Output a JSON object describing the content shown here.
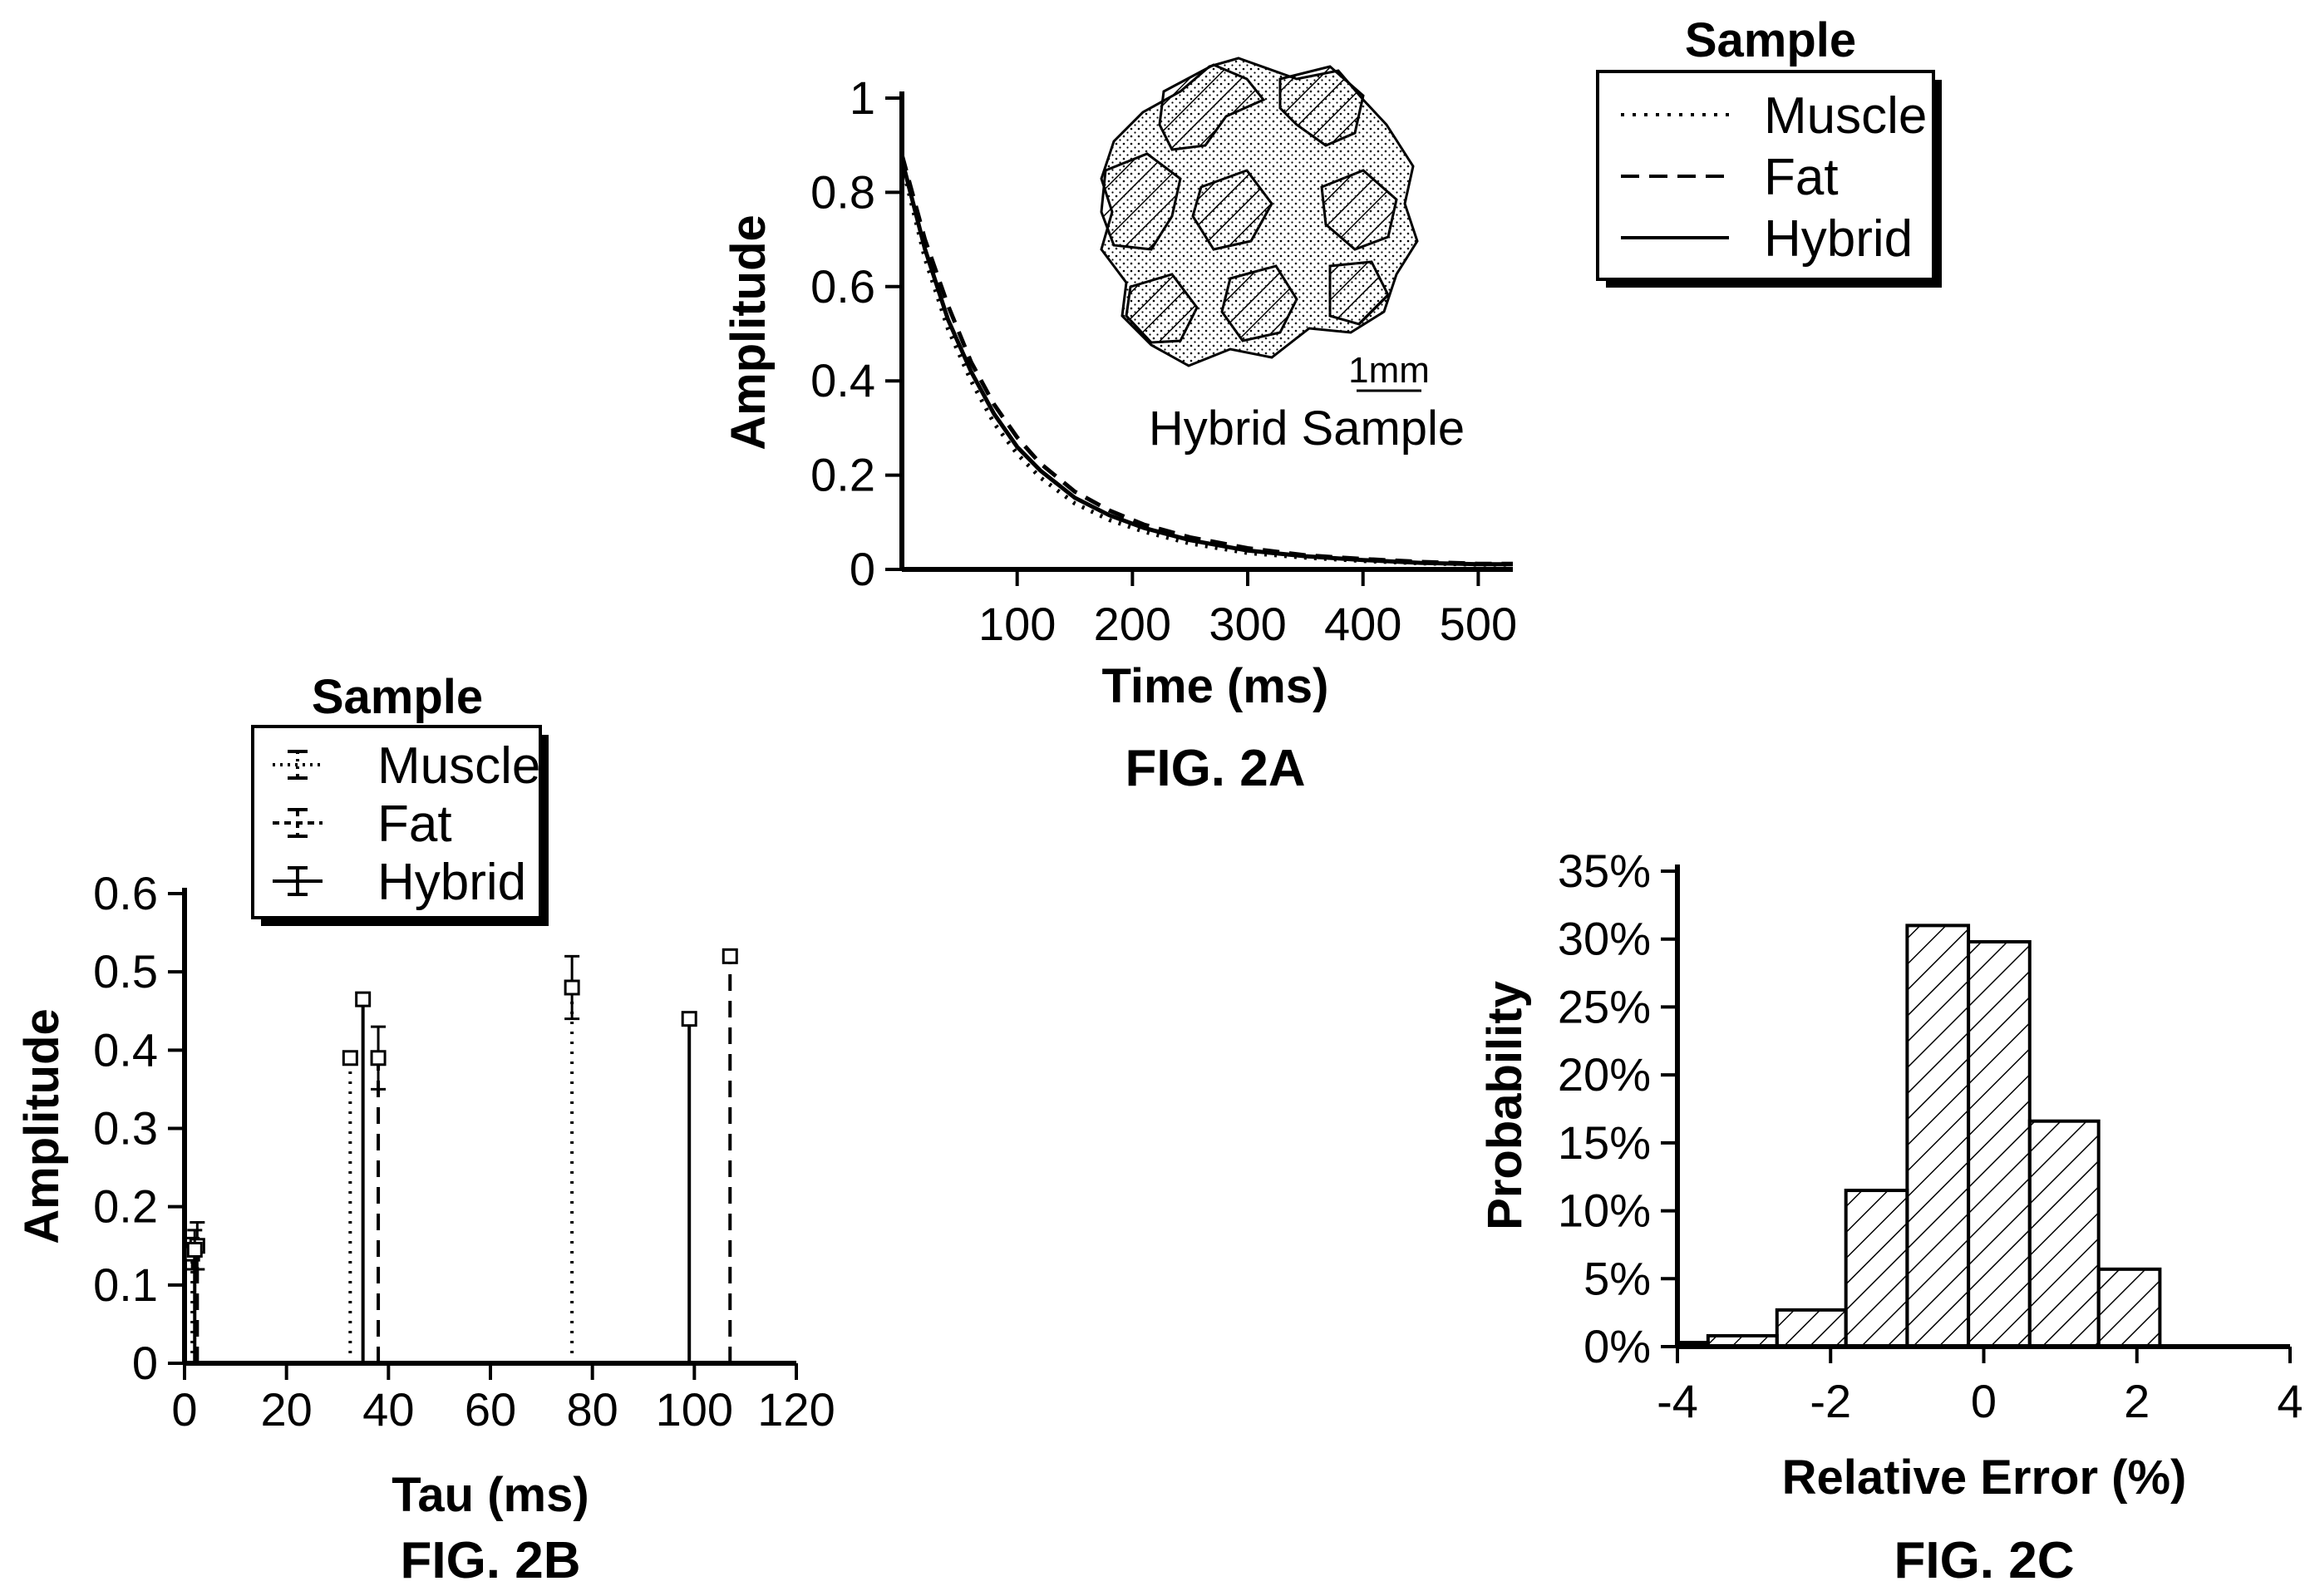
{
  "chart_data": [
    {
      "id": "fig2a",
      "type": "line",
      "figure_label": "FIG. 2A",
      "xlabel": "Time (ms)",
      "ylabel": "Amplitude",
      "xlim": [
        0,
        530
      ],
      "ylim": [
        0,
        1
      ],
      "x_ticks": [
        "100",
        "200",
        "300",
        "400",
        "500"
      ],
      "x_tick_values": [
        100,
        200,
        300,
        400,
        500
      ],
      "y_ticks": [
        "0",
        "0.2",
        "0.4",
        "0.6",
        "0.8",
        "1"
      ],
      "y_tick_values": [
        0,
        0.2,
        0.4,
        0.6,
        0.8,
        1
      ],
      "legend_title": "Sample",
      "legend_position": "top-right",
      "inset_caption": "Hybrid Sample",
      "inset_scale": "1mm",
      "series": [
        {
          "name": "Muscle",
          "style": "dotted",
          "x": [
            0,
            20,
            40,
            60,
            80,
            100,
            120,
            150,
            180,
            210,
            250,
            300,
            350,
            400,
            450,
            500,
            530
          ],
          "y": [
            0.86,
            0.66,
            0.51,
            0.4,
            0.31,
            0.245,
            0.195,
            0.14,
            0.105,
            0.08,
            0.055,
            0.035,
            0.025,
            0.018,
            0.013,
            0.01,
            0.01
          ]
        },
        {
          "name": "Fat",
          "style": "dashed",
          "x": [
            0,
            20,
            40,
            60,
            80,
            100,
            120,
            150,
            180,
            210,
            250,
            300,
            350,
            400,
            450,
            500,
            530
          ],
          "y": [
            0.88,
            0.7,
            0.56,
            0.44,
            0.35,
            0.28,
            0.225,
            0.165,
            0.125,
            0.095,
            0.068,
            0.045,
            0.03,
            0.022,
            0.016,
            0.012,
            0.012
          ]
        },
        {
          "name": "Hybrid",
          "style": "solid",
          "x": [
            0,
            20,
            40,
            60,
            80,
            100,
            120,
            150,
            180,
            210,
            250,
            300,
            350,
            400,
            450,
            500,
            530
          ],
          "y": [
            0.87,
            0.68,
            0.53,
            0.42,
            0.33,
            0.26,
            0.21,
            0.152,
            0.115,
            0.088,
            0.062,
            0.04,
            0.028,
            0.02,
            0.014,
            0.011,
            0.011
          ]
        }
      ]
    },
    {
      "id": "fig2b",
      "type": "scatter",
      "figure_label": "FIG. 2B",
      "xlabel": "Tau (ms)",
      "ylabel": "Amplitude",
      "xlim": [
        0,
        120
      ],
      "ylim": [
        0,
        0.6
      ],
      "x_ticks": [
        "0",
        "20",
        "40",
        "60",
        "80",
        "100",
        "120"
      ],
      "x_tick_values": [
        0,
        20,
        40,
        60,
        80,
        100,
        120
      ],
      "y_ticks": [
        "0",
        "0.1",
        "0.2",
        "0.3",
        "0.4",
        "0.5",
        "0.6"
      ],
      "y_tick_values": [
        0,
        0.1,
        0.2,
        0.3,
        0.4,
        0.5,
        0.6
      ],
      "legend_title": "Sample",
      "legend_position": "top",
      "series": [
        {
          "name": "Muscle",
          "style": "dotted",
          "points": [
            {
              "tau": 1.5,
              "amp": 0.14,
              "err": 0.02
            },
            {
              "tau": 32.5,
              "amp": 0.39,
              "err": 0.005
            },
            {
              "tau": 76.0,
              "amp": 0.48,
              "err": 0.04
            }
          ]
        },
        {
          "name": "Fat",
          "style": "dashed",
          "points": [
            {
              "tau": 2.5,
              "amp": 0.15,
              "err": 0.03
            },
            {
              "tau": 38.0,
              "amp": 0.39,
              "err": 0.04
            },
            {
              "tau": 107.0,
              "amp": 0.52,
              "err": 0.005
            }
          ]
        },
        {
          "name": "Hybrid",
          "style": "solid",
          "points": [
            {
              "tau": 2.0,
              "amp": 0.145,
              "err": 0.025
            },
            {
              "tau": 35.0,
              "amp": 0.465,
              "err": 0.005
            },
            {
              "tau": 99.0,
              "amp": 0.44,
              "err": 0.005
            }
          ]
        }
      ]
    },
    {
      "id": "fig2c",
      "type": "bar",
      "figure_label": "FIG. 2C",
      "xlabel": "Relative Error (%)",
      "ylabel": "Probability",
      "xlim": [
        -4,
        4
      ],
      "ylim": [
        0,
        35
      ],
      "x_ticks": [
        "-4",
        "-2",
        "0",
        "2",
        "4"
      ],
      "x_tick_values": [
        -4,
        -2,
        0,
        2,
        4
      ],
      "y_ticks": [
        "0%",
        "5%",
        "10%",
        "15%",
        "20%",
        "25%",
        "30%",
        "35%"
      ],
      "y_tick_values": [
        0,
        5,
        10,
        15,
        20,
        25,
        30,
        35
      ],
      "bin_edges": [
        -4.0,
        -3.6,
        -2.7,
        -1.8,
        -1.0,
        -0.2,
        0.6,
        1.5,
        2.3
      ],
      "values": [
        0.3,
        0.8,
        2.7,
        11.5,
        31.0,
        29.8,
        16.6,
        5.7
      ]
    }
  ]
}
